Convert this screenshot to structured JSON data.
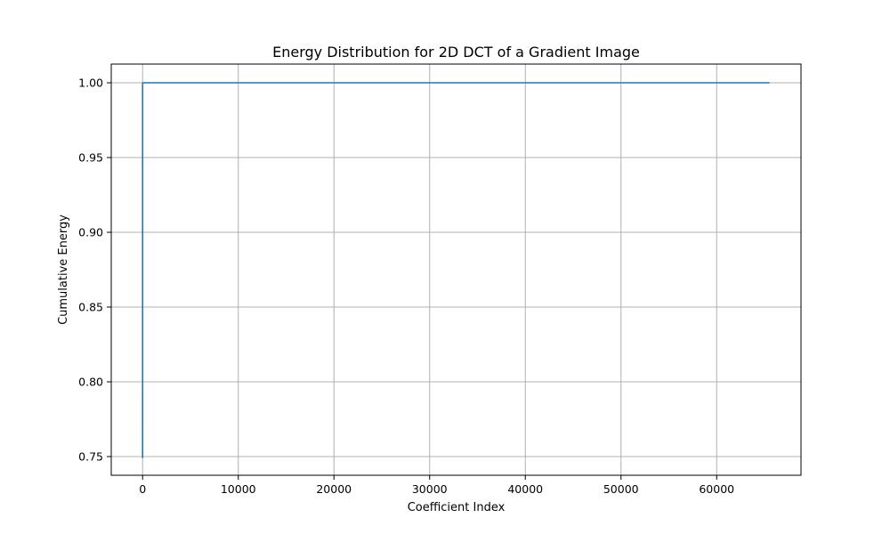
{
  "chart_data": {
    "type": "line",
    "title": "Energy Distribution for 2D DCT of a Gradient Image",
    "xlabel": "Coefficient Index",
    "ylabel": "Cumulative Energy",
    "xlim": [
      -3277,
      68813
    ],
    "ylim": [
      0.7375,
      1.0125
    ],
    "xticks": [
      0,
      10000,
      20000,
      30000,
      40000,
      50000,
      60000
    ],
    "yticks": [
      0.75,
      0.8,
      0.85,
      0.9,
      0.95,
      1.0
    ],
    "grid": true,
    "series": [
      {
        "color": "#1f77b4",
        "x": [
          0,
          1,
          2,
          255,
          65535
        ],
        "y": [
          0.749,
          0.9995,
          0.9999,
          1.0,
          1.0
        ]
      }
    ]
  }
}
